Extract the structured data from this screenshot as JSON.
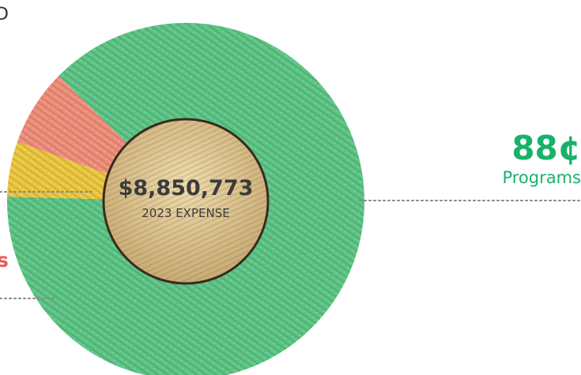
{
  "chart_data": {
    "type": "pie",
    "style": "donut",
    "center": {
      "amount": "$8,850,773",
      "caption": "2023 EXPENSE"
    },
    "slices": [
      {
        "key": "programs",
        "value": 88,
        "unit": "¢",
        "display": "88¢",
        "label": "Programs",
        "color": "#5cc585"
      },
      {
        "key": "yellow",
        "value": 5,
        "color": "#ecc73f"
      },
      {
        "key": "red",
        "value": 7,
        "color": "#ef8e7a"
      }
    ],
    "colors": {
      "programs_text": "#17b26a",
      "red_text": "#ea5a5a",
      "hole": "#e3cd9c",
      "hole_border": "#3a2a1e",
      "leader": "#888888"
    },
    "edge_fragments": {
      "top_left": "D",
      "left_red": "s"
    }
  }
}
